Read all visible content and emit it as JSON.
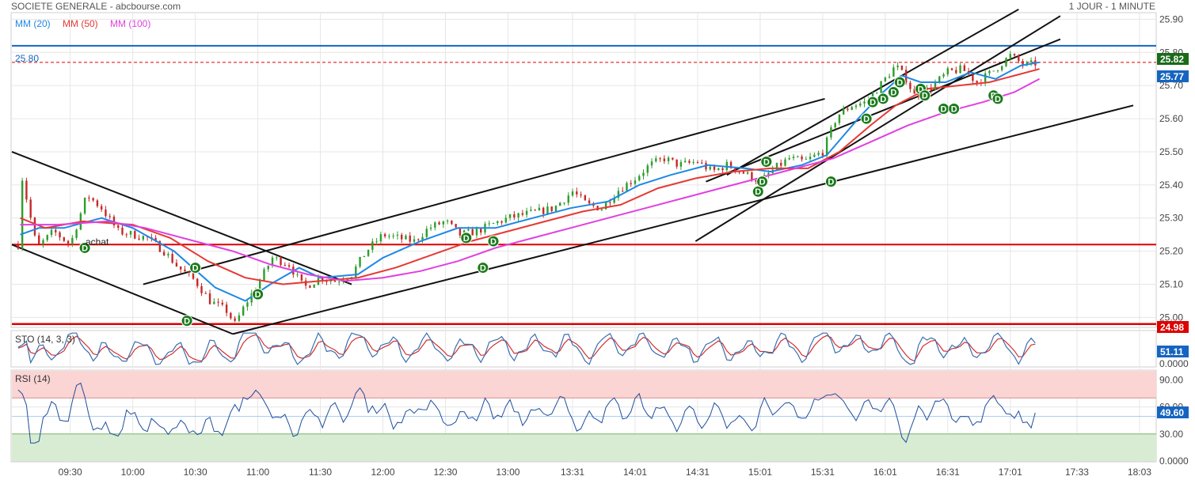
{
  "header": {
    "title": "SOCIETE GENERALE - abcbourse.com",
    "period": "1 JOUR - 1 MINUTE"
  },
  "legend": {
    "items": [
      {
        "label": "MM (20)",
        "color": "#1e88e5"
      },
      {
        "label": "MM (50)",
        "color": "#e53935"
      },
      {
        "label": "MM (100)",
        "color": "#e040e0"
      }
    ]
  },
  "colors": {
    "up": "#2e9d2e",
    "down": "#c62828",
    "mm20": "#1e88e5",
    "mm50": "#e53935",
    "mm100": "#e040e0",
    "signal": "#1a7a1a",
    "resistance": "#1565c0",
    "support": "#dd0000",
    "rsi": "#1f4e9c",
    "sto_k": "#3a6fb0",
    "sto_d": "#d32f2f"
  },
  "annotations": {
    "level_label": "25.80",
    "achat_label": "achat",
    "signal_letter": "D",
    "last_price_tag": "25.77",
    "resistance_tag": "25.82",
    "support_tag": "24.98",
    "sto_tag": "51.11",
    "rsi_tag": "49.60"
  },
  "chart_data": [
    {
      "type": "candlestick",
      "title": "SOCIETE GENERALE",
      "x_ticks": [
        "09:30",
        "10:00",
        "10:30",
        "11:00",
        "11:30",
        "12:00",
        "12:30",
        "13:00",
        "13:31",
        "14:01",
        "14:31",
        "15:01",
        "15:31",
        "16:01",
        "16:31",
        "17:01",
        "17:33",
        "18:03"
      ],
      "y_ticks": [
        "25.00",
        "25.10",
        "25.20",
        "25.30",
        "25.40",
        "25.50",
        "25.60",
        "25.70",
        "25.80",
        "25.90"
      ],
      "ylim": [
        24.97,
        25.92
      ],
      "horizontal_levels": [
        {
          "name": "resistance",
          "value": 25.82
        },
        {
          "name": "label",
          "value": 25.8
        },
        {
          "name": "last",
          "value": 25.77
        },
        {
          "name": "support",
          "value": 25.22
        },
        {
          "name": "support",
          "value": 24.98
        }
      ],
      "price_path": [
        [
          "09:05",
          25.22
        ],
        [
          "09:07",
          25.42
        ],
        [
          "09:14",
          25.21
        ],
        [
          "09:22",
          25.26
        ],
        [
          "09:30",
          25.22
        ],
        [
          "09:38",
          25.37
        ],
        [
          "09:45",
          25.33
        ],
        [
          "09:53",
          25.26
        ],
        [
          "10:00",
          25.25
        ],
        [
          "10:07",
          25.24
        ],
        [
          "10:15",
          25.2
        ],
        [
          "10:22",
          25.15
        ],
        [
          "10:30",
          25.11
        ],
        [
          "10:37",
          25.05
        ],
        [
          "10:45",
          25.02
        ],
        [
          "10:49",
          24.98
        ],
        [
          "10:55",
          25.05
        ],
        [
          "11:00",
          25.1
        ],
        [
          "11:07",
          25.18
        ],
        [
          "11:15",
          25.16
        ],
        [
          "11:22",
          25.09
        ],
        [
          "11:30",
          25.12
        ],
        [
          "11:37",
          25.11
        ],
        [
          "11:45",
          25.13
        ],
        [
          "11:52",
          25.2
        ],
        [
          "12:00",
          25.25
        ],
        [
          "12:07",
          25.24
        ],
        [
          "12:15",
          25.23
        ],
        [
          "12:22",
          25.27
        ],
        [
          "12:30",
          25.29
        ],
        [
          "12:37",
          25.25
        ],
        [
          "12:45",
          25.26
        ],
        [
          "12:52",
          25.28
        ],
        [
          "13:00",
          25.3
        ],
        [
          "13:07",
          25.31
        ],
        [
          "13:15",
          25.32
        ],
        [
          "13:22",
          25.33
        ],
        [
          "13:31",
          25.38
        ],
        [
          "13:38",
          25.34
        ],
        [
          "13:45",
          25.33
        ],
        [
          "13:52",
          25.38
        ],
        [
          "14:01",
          25.42
        ],
        [
          "14:08",
          25.46
        ],
        [
          "14:15",
          25.48
        ],
        [
          "14:22",
          25.46
        ],
        [
          "14:31",
          25.47
        ],
        [
          "14:38",
          25.44
        ],
        [
          "14:45",
          25.46
        ],
        [
          "14:52",
          25.44
        ],
        [
          "15:01",
          25.41
        ],
        [
          "15:08",
          25.45
        ],
        [
          "15:15",
          25.48
        ],
        [
          "15:22",
          25.47
        ],
        [
          "15:31",
          25.5
        ],
        [
          "15:38",
          25.61
        ],
        [
          "15:45",
          25.64
        ],
        [
          "15:52",
          25.65
        ],
        [
          "16:01",
          25.72
        ],
        [
          "16:06",
          25.76
        ],
        [
          "16:11",
          25.72
        ],
        [
          "16:15",
          25.67
        ],
        [
          "16:22",
          25.69
        ],
        [
          "16:31",
          25.74
        ],
        [
          "16:38",
          25.75
        ],
        [
          "16:45",
          25.71
        ],
        [
          "16:52",
          25.74
        ],
        [
          "17:01",
          25.79
        ],
        [
          "17:08",
          25.76
        ],
        [
          "17:15",
          25.77
        ]
      ],
      "series": [
        {
          "name": "MM (20)",
          "values": [
            [
              9.1,
              25.25
            ],
            [
              9.25,
              25.27
            ],
            [
              9.45,
              25.27
            ],
            [
              9.75,
              25.3
            ],
            [
              10.0,
              25.27
            ],
            [
              10.33,
              25.2
            ],
            [
              10.66,
              25.09
            ],
            [
              10.9,
              25.05
            ],
            [
              11.1,
              25.1
            ],
            [
              11.33,
              25.15
            ],
            [
              11.5,
              25.12
            ],
            [
              11.8,
              25.13
            ],
            [
              12.0,
              25.18
            ],
            [
              12.3,
              25.23
            ],
            [
              12.6,
              25.27
            ],
            [
              12.9,
              25.27
            ],
            [
              13.2,
              25.3
            ],
            [
              13.5,
              25.33
            ],
            [
              13.8,
              25.35
            ],
            [
              14.05,
              25.4
            ],
            [
              14.3,
              25.43
            ],
            [
              14.6,
              25.46
            ],
            [
              14.9,
              25.45
            ],
            [
              15.1,
              25.44
            ],
            [
              15.35,
              25.46
            ],
            [
              15.55,
              25.49
            ],
            [
              15.8,
              25.6
            ],
            [
              16.0,
              25.68
            ],
            [
              16.15,
              25.73
            ],
            [
              16.3,
              25.71
            ],
            [
              16.5,
              25.71
            ],
            [
              16.7,
              25.74
            ],
            [
              16.9,
              25.72
            ],
            [
              17.1,
              25.76
            ],
            [
              17.25,
              25.77
            ]
          ]
        },
        {
          "name": "MM (50)",
          "values": [
            [
              9.1,
              25.3
            ],
            [
              9.3,
              25.27
            ],
            [
              9.6,
              25.29
            ],
            [
              10.0,
              25.28
            ],
            [
              10.3,
              25.24
            ],
            [
              10.6,
              25.17
            ],
            [
              10.9,
              25.12
            ],
            [
              11.2,
              25.1
            ],
            [
              11.5,
              25.11
            ],
            [
              11.8,
              25.12
            ],
            [
              12.1,
              25.15
            ],
            [
              12.4,
              25.19
            ],
            [
              12.7,
              25.23
            ],
            [
              13.0,
              25.26
            ],
            [
              13.3,
              25.29
            ],
            [
              13.6,
              25.32
            ],
            [
              13.9,
              25.34
            ],
            [
              14.2,
              25.39
            ],
            [
              14.5,
              25.42
            ],
            [
              14.8,
              25.44
            ],
            [
              15.1,
              25.45
            ],
            [
              15.4,
              25.45
            ],
            [
              15.65,
              25.5
            ],
            [
              15.9,
              25.58
            ],
            [
              16.1,
              25.64
            ],
            [
              16.35,
              25.69
            ],
            [
              16.6,
              25.7
            ],
            [
              16.85,
              25.71
            ],
            [
              17.05,
              25.73
            ],
            [
              17.25,
              25.75
            ]
          ]
        },
        {
          "name": "MM (100)",
          "values": [
            [
              9.1,
              25.28
            ],
            [
              9.4,
              25.28
            ],
            [
              9.8,
              25.29
            ],
            [
              10.1,
              25.27
            ],
            [
              10.5,
              25.23
            ],
            [
              10.8,
              25.2
            ],
            [
              11.1,
              25.16
            ],
            [
              11.4,
              25.13
            ],
            [
              11.7,
              25.11
            ],
            [
              12.0,
              25.12
            ],
            [
              12.3,
              25.14
            ],
            [
              12.6,
              25.17
            ],
            [
              12.9,
              25.21
            ],
            [
              13.2,
              25.24
            ],
            [
              13.5,
              25.27
            ],
            [
              13.8,
              25.3
            ],
            [
              14.1,
              25.33
            ],
            [
              14.4,
              25.36
            ],
            [
              14.7,
              25.39
            ],
            [
              15.0,
              25.42
            ],
            [
              15.3,
              25.45
            ],
            [
              15.6,
              25.48
            ],
            [
              15.9,
              25.53
            ],
            [
              16.2,
              25.58
            ],
            [
              16.5,
              25.62
            ],
            [
              16.8,
              25.65
            ],
            [
              17.05,
              25.68
            ],
            [
              17.25,
              25.72
            ]
          ]
        }
      ]
    },
    {
      "type": "line",
      "title": "STO (14, 3, 3)",
      "y_ticks": [
        "0.0000"
      ],
      "ylim": [
        0,
        100
      ],
      "last_value": 51.11
    },
    {
      "type": "line",
      "title": "RSI (14)",
      "y_ticks": [
        "90.00",
        "60.00",
        "30.00",
        "0.0000"
      ],
      "ylim": [
        0,
        100
      ],
      "overbought": 70,
      "oversold": 30,
      "last_value": 49.6
    }
  ]
}
